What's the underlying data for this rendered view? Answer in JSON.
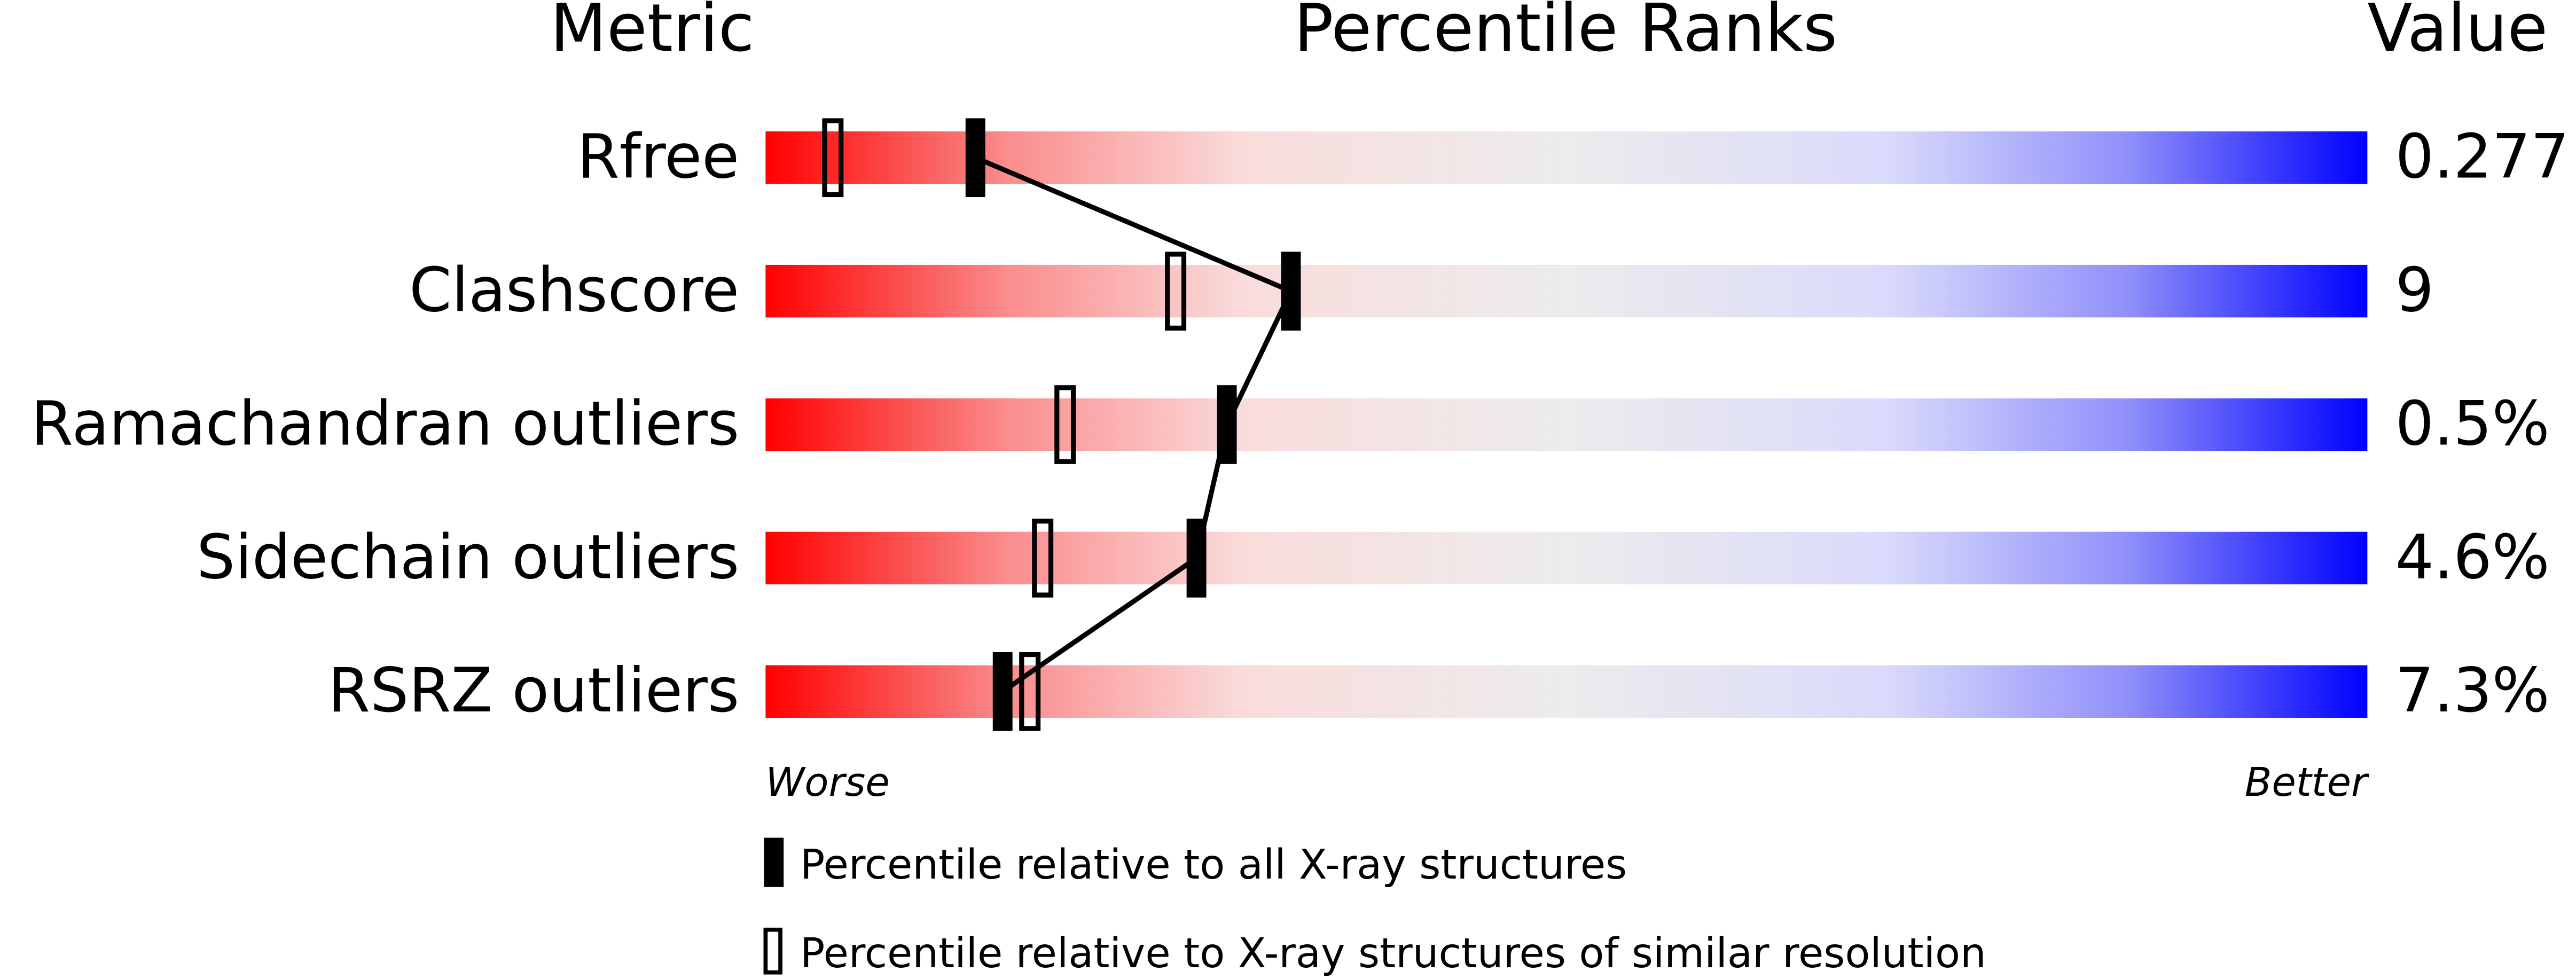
{
  "chart_data": {
    "type": "percentile_slider",
    "headers": {
      "metric": "Metric",
      "ranks": "Percentile Ranks",
      "value": "Value"
    },
    "categories": [
      "Rfree",
      "Clashscore",
      "Ramachandran outliers",
      "Sidechain outliers",
      "RSRZ outliers"
    ],
    "value_labels": [
      "0.277",
      "9",
      "0.5%",
      "4.6%",
      "7.3%"
    ],
    "series": [
      {
        "name": "Percentile relative to all X-ray structures",
        "style": "filled",
        "color": "#000000",
        "values": [
          13.1,
          32.8,
          28.8,
          26.9,
          14.8
        ]
      },
      {
        "name": "Percentile relative to X-ray structures of similar resolution",
        "style": "hollow",
        "color": "#000000",
        "values": [
          4.2,
          25.6,
          18.7,
          17.3,
          16.5
        ]
      }
    ],
    "xlim": [
      0,
      100
    ],
    "worse_label": "Worse",
    "better_label": "Better"
  }
}
